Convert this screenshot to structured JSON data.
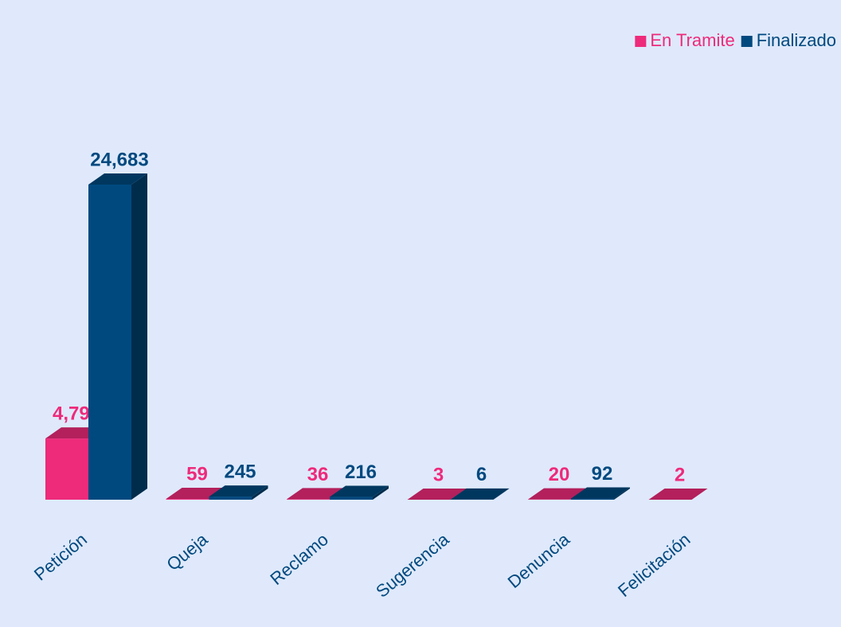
{
  "chart_data": {
    "type": "bar3d",
    "categories": [
      "Petición",
      "Queja",
      "Reclamo",
      "Sugerencia",
      "Denuncia",
      "Felicitación"
    ],
    "series": [
      {
        "name": "En Tramite",
        "color": "#ee2a7b",
        "values": [
          4793,
          59,
          36,
          3,
          20,
          2
        ],
        "value_labels": [
          "4,793",
          "59",
          "36",
          "3",
          "20",
          "2"
        ]
      },
      {
        "name": "Finalizado",
        "color": "#00497f",
        "values": [
          24683,
          245,
          216,
          6,
          92,
          null
        ],
        "value_labels": [
          "24,683",
          "245",
          "216",
          "6",
          "92",
          null
        ]
      }
    ],
    "legend": "top-right"
  }
}
